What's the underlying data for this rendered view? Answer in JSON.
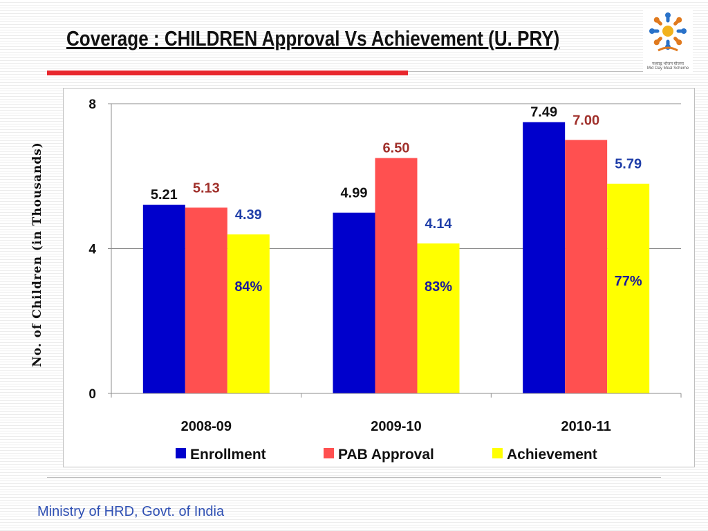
{
  "slide": {
    "title": "Coverage : CHILDREN Approval Vs Achievement (U. PRY)",
    "footer": "Ministry of HRD, Govt. of India",
    "logo_icon": "mid-day-meal-logo-icon",
    "logo_caption_1": "मध्याह्न भोजन योजना",
    "logo_caption_2": "Mid Day Meal Scheme",
    "accent_color": "#e8272d"
  },
  "chart_data": {
    "type": "bar",
    "ylabel": "No. of Children (in Thousands)",
    "xlabel": "",
    "ylim": [
      0,
      8
    ],
    "yticks": [
      0,
      4,
      8
    ],
    "grid": true,
    "legend_position": "bottom",
    "categories": [
      "2008-09",
      "2009-10",
      "2010-11"
    ],
    "series": [
      {
        "name": "Enrollment",
        "color": "#0000cc",
        "label_color": "#111111",
        "values": [
          5.21,
          4.99,
          7.49
        ],
        "labels": [
          "5.21",
          "4.99",
          "7.49"
        ]
      },
      {
        "name": "PAB Approval",
        "color": "#ff5050",
        "label_color": "#a0302b",
        "values": [
          5.13,
          6.5,
          7.0
        ],
        "labels": [
          "5.13",
          "6.50",
          "7.00"
        ]
      },
      {
        "name": "Achievement",
        "color": "#ffff00",
        "label_color": "#1f3ea8",
        "values": [
          4.39,
          4.14,
          5.79
        ],
        "labels": [
          "4.39",
          "4.14",
          "5.79"
        ]
      }
    ],
    "annotations": [
      {
        "category": "2008-09",
        "series": "Achievement",
        "text": "84%",
        "color": "#1a1a9c"
      },
      {
        "category": "2009-10",
        "series": "Achievement",
        "text": "83%",
        "color": "#1a1a9c"
      },
      {
        "category": "2010-11",
        "series": "Achievement",
        "text": "77%",
        "color": "#1a1a9c"
      }
    ]
  }
}
